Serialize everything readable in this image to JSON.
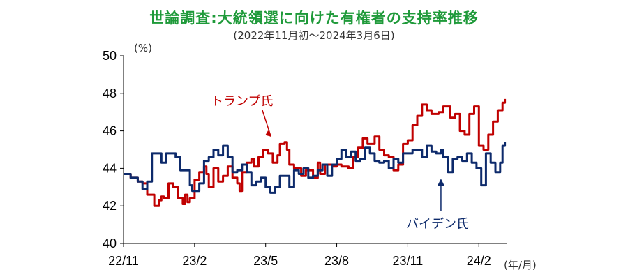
{
  "chart_data": {
    "type": "line",
    "title": "世論調査:大統領選に向けた有権者の支持率推移",
    "subtitle": "(2022年11月初〜2024年3月6日)",
    "ylabel": "(%)",
    "xlabel": "(年/月)",
    "ylim": [
      40,
      50
    ],
    "yticks": [
      40,
      42,
      44,
      46,
      48,
      50
    ],
    "xlim": [
      0,
      16.2
    ],
    "xticks": [
      {
        "pos": 0,
        "label": "22/11"
      },
      {
        "pos": 3,
        "label": "23/2"
      },
      {
        "pos": 6,
        "label": "23/5"
      },
      {
        "pos": 9,
        "label": "23/8"
      },
      {
        "pos": 12,
        "label": "23/11"
      },
      {
        "pos": 15,
        "label": "24/2"
      }
    ],
    "grid": false,
    "series": [
      {
        "name": "トランプ氏",
        "color": "#c00000",
        "x": [
          0,
          0.3,
          0.6,
          0.8,
          1.0,
          1.3,
          1.5,
          1.6,
          1.7,
          1.9,
          2.1,
          2.3,
          2.5,
          2.6,
          2.7,
          2.8,
          3.0,
          3.2,
          3.4,
          3.5,
          3.6,
          3.8,
          4.0,
          4.2,
          4.4,
          4.6,
          4.8,
          4.9,
          5.0,
          5.2,
          5.4,
          5.5,
          5.7,
          5.9,
          6.1,
          6.3,
          6.5,
          6.6,
          6.8,
          6.9,
          7.0,
          7.2,
          7.5,
          7.7,
          8.0,
          8.2,
          8.3,
          8.5,
          8.8,
          9.0,
          9.2,
          9.5,
          9.7,
          9.9,
          10.1,
          10.3,
          10.6,
          10.8,
          11.0,
          11.2,
          11.4,
          11.6,
          11.8,
          12.0,
          12.2,
          12.4,
          12.6,
          12.8,
          13.0,
          13.3,
          13.5,
          13.8,
          14.0,
          14.2,
          14.4,
          14.6,
          14.8,
          15.0,
          15.2,
          15.4,
          15.6,
          15.8,
          16.0,
          16.1
        ],
        "values": [
          43.7,
          43.5,
          43.3,
          43.2,
          42.6,
          42.0,
          42.3,
          42.5,
          42.4,
          43.2,
          43.0,
          42.4,
          42.1,
          42.6,
          42.2,
          42.4,
          43.4,
          43.8,
          44.1,
          43.7,
          43.0,
          44.0,
          43.3,
          43.6,
          44.1,
          43.5,
          43.2,
          42.8,
          43.8,
          44.3,
          44.5,
          44.1,
          44.6,
          45.0,
          44.8,
          44.3,
          44.7,
          45.3,
          45.4,
          45.0,
          44.2,
          44.0,
          43.6,
          43.9,
          43.5,
          44.3,
          43.7,
          44.2,
          44.1,
          44.2,
          44.1,
          44.0,
          44.6,
          45.1,
          45.6,
          45.3,
          45.7,
          45.0,
          44.7,
          44.6,
          43.9,
          44.2,
          45.3,
          45.5,
          46.3,
          46.8,
          47.4,
          47.1,
          46.9,
          47.0,
          47.3,
          46.7,
          46.9,
          46.0,
          45.8,
          46.9,
          47.3,
          45.2,
          45.0,
          45.8,
          46.5,
          47.1,
          47.5,
          47.7
        ]
      },
      {
        "name": "バイデン氏",
        "color": "#0d2a6b",
        "x": [
          0,
          0.3,
          0.6,
          0.8,
          1.0,
          1.2,
          1.4,
          1.6,
          1.8,
          2.0,
          2.2,
          2.4,
          2.6,
          2.8,
          2.9,
          3.0,
          3.2,
          3.4,
          3.6,
          3.8,
          4.0,
          4.2,
          4.4,
          4.6,
          4.8,
          5.0,
          5.2,
          5.4,
          5.6,
          5.8,
          6.0,
          6.2,
          6.4,
          6.6,
          6.8,
          7.0,
          7.2,
          7.4,
          7.6,
          7.8,
          8.0,
          8.2,
          8.4,
          8.6,
          8.8,
          9.0,
          9.2,
          9.4,
          9.6,
          9.8,
          10.0,
          10.2,
          10.4,
          10.6,
          10.8,
          11.0,
          11.2,
          11.4,
          11.6,
          11.8,
          12.0,
          12.2,
          12.4,
          12.6,
          12.8,
          13.0,
          13.2,
          13.4,
          13.5,
          13.7,
          13.9,
          14.1,
          14.3,
          14.5,
          14.7,
          14.9,
          15.1,
          15.3,
          15.5,
          15.7,
          15.9,
          16.0,
          16.1
        ],
        "values": [
          43.7,
          43.5,
          43.3,
          42.9,
          43.3,
          44.8,
          44.8,
          44.3,
          44.8,
          44.8,
          44.6,
          43.9,
          43.9,
          43.1,
          42.8,
          42.8,
          43.2,
          44.4,
          44.6,
          45.0,
          44.7,
          45.2,
          44.6,
          43.8,
          43.9,
          44.2,
          43.8,
          43.1,
          43.3,
          43.5,
          43.0,
          42.7,
          43.0,
          43.6,
          43.6,
          43.0,
          43.9,
          43.7,
          44.0,
          43.5,
          43.6,
          43.9,
          44.2,
          43.6,
          44.2,
          44.5,
          45.0,
          44.6,
          44.9,
          44.4,
          44.5,
          45.1,
          44.8,
          44.4,
          44.3,
          44.4,
          44.0,
          44.5,
          44.3,
          44.8,
          44.8,
          45.0,
          45.0,
          44.6,
          45.2,
          44.9,
          44.8,
          45.0,
          44.6,
          43.8,
          44.5,
          44.6,
          44.4,
          44.8,
          44.3,
          44.0,
          43.1,
          44.8,
          44.3,
          43.8,
          44.3,
          45.2,
          45.4
        ]
      }
    ],
    "annotations": [
      {
        "text": "トランプ氏",
        "series": "トランプ氏",
        "x": 6.4,
        "y": 45.4
      },
      {
        "text": "バイデン氏",
        "series": "バイデン氏",
        "x": 13.4,
        "y": 43.3
      }
    ],
    "colors": {
      "title": "#1f9a3a",
      "axis": "#000000"
    }
  }
}
